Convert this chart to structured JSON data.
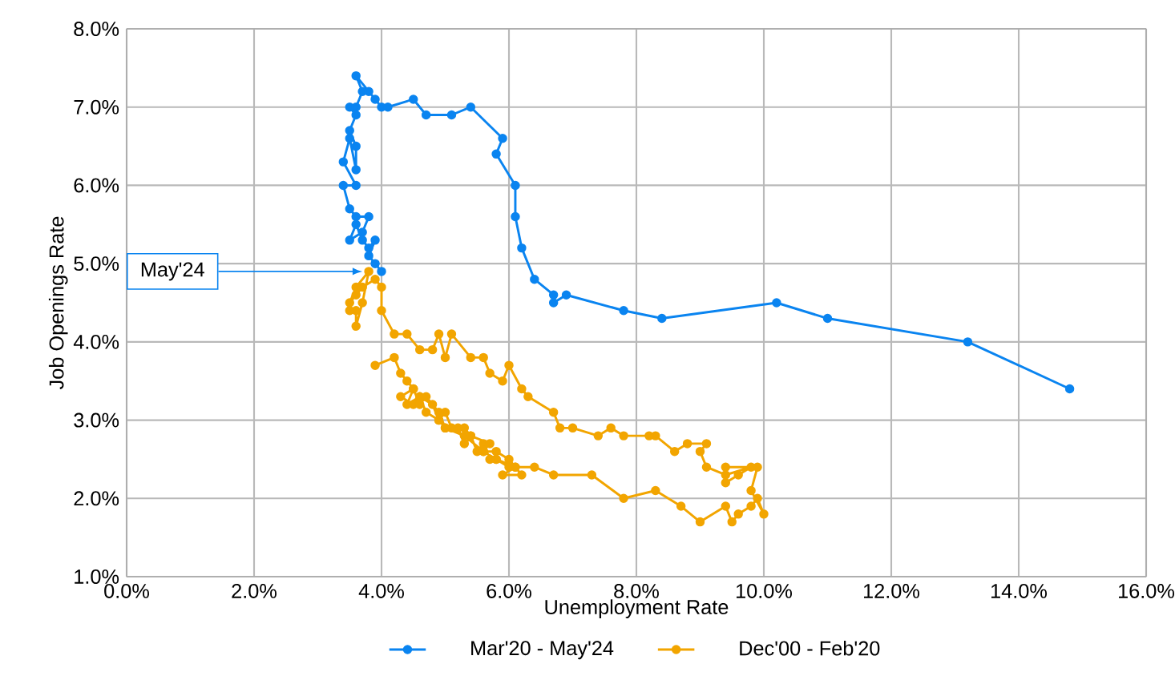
{
  "chart_data": {
    "type": "line",
    "xlabel": "Unemployment Rate",
    "ylabel": "Job Openings Rate",
    "xlim": [
      0,
      16
    ],
    "ylim": [
      1,
      8
    ],
    "xticks": [
      {
        "value": 0,
        "label": "0.0%"
      },
      {
        "value": 2,
        "label": "2.0%"
      },
      {
        "value": 4,
        "label": "4.0%"
      },
      {
        "value": 6,
        "label": "6.0%"
      },
      {
        "value": 8,
        "label": "8.0%"
      },
      {
        "value": 10,
        "label": "10.0%"
      },
      {
        "value": 12,
        "label": "12.0%"
      },
      {
        "value": 14,
        "label": "14.0%"
      },
      {
        "value": 16,
        "label": "16.0%"
      }
    ],
    "yticks": [
      {
        "value": 1,
        "label": "1.0%"
      },
      {
        "value": 2,
        "label": "2.0%"
      },
      {
        "value": 3,
        "label": "3.0%"
      },
      {
        "value": 4,
        "label": "4.0%"
      },
      {
        "value": 5,
        "label": "5.0%"
      },
      {
        "value": 6,
        "label": "6.0%"
      },
      {
        "value": 7,
        "label": "7.0%"
      },
      {
        "value": 8,
        "label": "8.0%"
      }
    ],
    "grid": true,
    "legend": "bottom",
    "marker": "circle",
    "line_style": "solid",
    "annotations": [
      {
        "text": "May'24",
        "x": 3.7,
        "y": 4.9
      }
    ],
    "series": [
      {
        "name": "Mar'20 - May'24",
        "color": "#0a84f0",
        "x": [
          14.8,
          13.2,
          11.0,
          10.2,
          8.4,
          7.8,
          6.9,
          6.7,
          6.7,
          6.4,
          6.2,
          6.1,
          6.1,
          5.8,
          5.9,
          5.4,
          5.1,
          4.7,
          4.5,
          4.1,
          4.0,
          3.9,
          3.8,
          3.6,
          3.7,
          3.6,
          3.5,
          3.6,
          3.5,
          3.6,
          3.6,
          3.5,
          3.4,
          3.6,
          3.4,
          3.5,
          3.6,
          3.8,
          3.7,
          3.5,
          3.6,
          3.7,
          3.8,
          3.9,
          3.8,
          3.9,
          4.0
        ],
        "values": [
          3.4,
          4.0,
          4.3,
          4.5,
          4.3,
          4.4,
          4.6,
          4.5,
          4.6,
          4.8,
          5.2,
          5.6,
          6.0,
          6.4,
          6.6,
          7.0,
          6.9,
          6.9,
          7.1,
          7.0,
          7.0,
          7.1,
          7.2,
          7.4,
          7.2,
          7.0,
          7.0,
          6.9,
          6.7,
          6.5,
          6.2,
          6.6,
          6.3,
          6.0,
          6.0,
          5.7,
          5.6,
          5.6,
          5.4,
          5.3,
          5.5,
          5.3,
          5.2,
          5.3,
          5.1,
          5.0,
          4.9
        ]
      },
      {
        "name": "Dec'00 - Feb'20",
        "color": "#f2a500",
        "x": [
          3.9,
          4.2,
          4.3,
          4.4,
          4.5,
          4.3,
          4.5,
          4.6,
          4.7,
          4.9,
          5.0,
          5.1,
          5.3,
          5.4,
          5.5,
          5.6,
          5.7,
          5.8,
          6.0,
          6.1,
          5.9,
          6.2,
          6.0,
          5.8,
          5.6,
          5.7,
          5.4,
          5.3,
          5.2,
          5.0,
          4.9,
          4.7,
          4.6,
          4.5,
          4.4,
          4.6,
          4.8,
          4.9,
          5.0,
          5.3,
          5.6,
          5.8,
          6.1,
          6.4,
          6.7,
          7.3,
          7.8,
          8.3,
          8.7,
          9.0,
          9.4,
          9.5,
          9.6,
          9.8,
          9.9,
          10.0,
          9.8,
          9.9,
          9.4,
          9.4,
          9.6,
          9.8,
          9.4,
          9.1,
          9.0,
          9.1,
          8.8,
          8.6,
          8.3,
          8.2,
          7.8,
          7.6,
          7.4,
          7.0,
          6.8,
          6.7,
          6.3,
          6.2,
          6.0,
          5.9,
          5.7,
          5.6,
          5.4,
          5.1,
          5.0,
          4.9,
          4.8,
          4.6,
          4.4,
          4.2,
          4.0,
          4.0,
          3.9,
          3.7,
          3.6,
          3.5,
          3.6,
          3.8,
          3.7,
          3.6,
          3.6,
          3.5
        ],
        "values": [
          3.7,
          3.8,
          3.6,
          3.5,
          3.4,
          3.3,
          3.2,
          3.3,
          3.1,
          3.0,
          3.1,
          2.9,
          2.9,
          2.8,
          2.6,
          2.7,
          2.5,
          2.5,
          2.4,
          2.4,
          2.3,
          2.3,
          2.5,
          2.6,
          2.6,
          2.7,
          2.8,
          2.7,
          2.9,
          2.9,
          3.1,
          3.3,
          3.2,
          3.4,
          3.2,
          3.3,
          3.2,
          3.0,
          2.9,
          2.8,
          2.6,
          2.5,
          2.4,
          2.4,
          2.3,
          2.3,
          2.0,
          2.1,
          1.9,
          1.7,
          1.9,
          1.7,
          1.8,
          1.9,
          2.0,
          1.8,
          2.1,
          2.4,
          2.4,
          2.2,
          2.3,
          2.4,
          2.3,
          2.4,
          2.6,
          2.7,
          2.7,
          2.6,
          2.8,
          2.8,
          2.8,
          2.9,
          2.8,
          2.9,
          2.9,
          3.1,
          3.3,
          3.4,
          3.7,
          3.5,
          3.6,
          3.8,
          3.8,
          4.1,
          3.8,
          4.1,
          3.9,
          3.9,
          4.1,
          4.1,
          4.4,
          4.7,
          4.8,
          4.7,
          4.6,
          4.5,
          4.7,
          4.9,
          4.5,
          4.2,
          4.4,
          4.4
        ]
      }
    ]
  }
}
